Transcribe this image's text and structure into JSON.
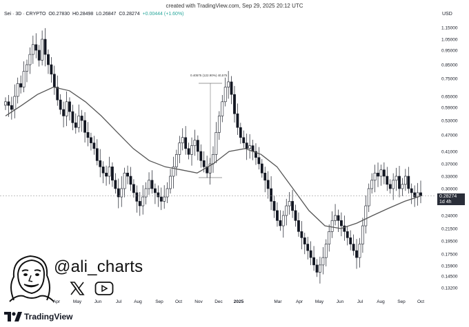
{
  "caption": "created with TradingView.com, Sep 29, 2025 20:12 UTC",
  "symbol": {
    "name": "Sei · 3D · CRYPTO",
    "open": "O0.27830",
    "high": "H0.28498",
    "low": "L0.26847",
    "close": "C0.28274",
    "change": "+0.00444 (+1.60%)"
  },
  "currency": "USD",
  "last_price": {
    "value": "0.28274",
    "countdown": "1d 4h"
  },
  "measure_label": "0.40575 (122.90%) 40,575",
  "brand": {
    "handle": "@ali_charts",
    "x_icon": "x-logo-icon",
    "yt_icon": "youtube-icon"
  },
  "tv_logo_text": "TradingView",
  "colors": {
    "candle": "#131722",
    "ma": "#555555",
    "badge": "#2a2e39",
    "up_change": "#26a69a"
  },
  "chart_data": {
    "type": "candlestick",
    "y_scale": "log",
    "price_ticks": [
      "1.15000",
      "1.05000",
      "0.95000",
      "0.85000",
      "0.75000",
      "0.65000",
      "0.59000",
      "0.53000",
      "0.47000",
      "0.41000",
      "0.37000",
      "0.33000",
      "0.30000",
      "0.24000",
      "0.21500",
      "0.19500",
      "0.17500",
      "0.15900",
      "0.14500",
      "0.13200"
    ],
    "time_ticks": [
      "Apr",
      "May",
      "Jun",
      "Jul",
      "Aug",
      "Sep",
      "Oct",
      "Nov",
      "Dec",
      "2025",
      "Mar",
      "Apr",
      "May",
      "Jun",
      "Jul",
      "Aug",
      "Sep",
      "Oct"
    ],
    "ylim": [
      0.125,
      1.2
    ],
    "close_series": [
      0.62,
      0.6,
      0.58,
      0.65,
      0.72,
      0.7,
      0.8,
      0.85,
      0.92,
      1.0,
      0.95,
      0.88,
      1.05,
      0.92,
      0.85,
      0.78,
      0.7,
      0.63,
      0.58,
      0.55,
      0.62,
      0.57,
      0.52,
      0.5,
      0.55,
      0.53,
      0.48,
      0.46,
      0.44,
      0.42,
      0.38,
      0.36,
      0.34,
      0.33,
      0.36,
      0.32,
      0.3,
      0.28,
      0.3,
      0.34,
      0.33,
      0.31,
      0.29,
      0.27,
      0.26,
      0.28,
      0.3,
      0.32,
      0.3,
      0.29,
      0.28,
      0.27,
      0.28,
      0.3,
      0.33,
      0.36,
      0.4,
      0.44,
      0.46,
      0.42,
      0.4,
      0.43,
      0.45,
      0.41,
      0.38,
      0.36,
      0.34,
      0.37,
      0.4,
      0.48,
      0.55,
      0.62,
      0.7,
      0.73,
      0.66,
      0.56,
      0.5,
      0.46,
      0.44,
      0.42,
      0.43,
      0.41,
      0.39,
      0.37,
      0.34,
      0.32,
      0.3,
      0.27,
      0.25,
      0.23,
      0.22,
      0.24,
      0.26,
      0.27,
      0.25,
      0.23,
      0.21,
      0.2,
      0.19,
      0.18,
      0.17,
      0.16,
      0.15,
      0.16,
      0.17,
      0.19,
      0.21,
      0.23,
      0.24,
      0.23,
      0.22,
      0.21,
      0.2,
      0.19,
      0.18,
      0.17,
      0.19,
      0.22,
      0.26,
      0.3,
      0.32,
      0.34,
      0.33,
      0.35,
      0.33,
      0.31,
      0.3,
      0.32,
      0.33,
      0.3,
      0.31,
      0.33,
      0.3,
      0.29,
      0.28,
      0.29,
      0.28274
    ],
    "moving_average": [
      0.55,
      0.6,
      0.66,
      0.7,
      0.68,
      0.62,
      0.55,
      0.48,
      0.42,
      0.38,
      0.36,
      0.35,
      0.34,
      0.37,
      0.41,
      0.42,
      0.4,
      0.36,
      0.3,
      0.25,
      0.22,
      0.215,
      0.225,
      0.24,
      0.255,
      0.27,
      0.282
    ],
    "current_price": 0.28274
  }
}
